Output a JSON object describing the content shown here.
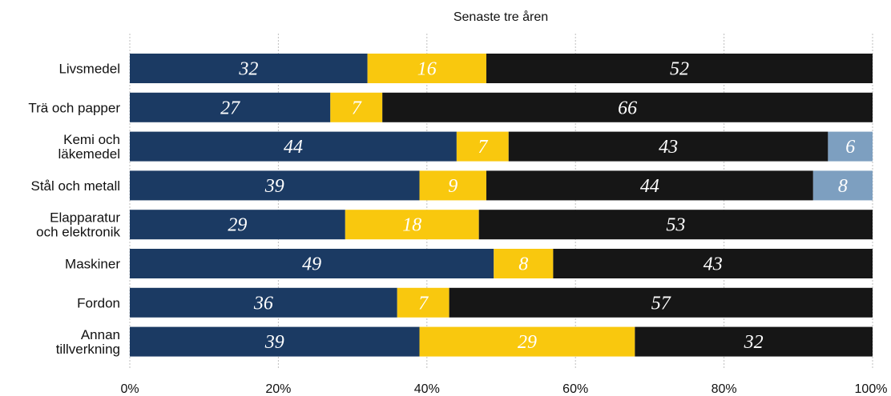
{
  "chart_data": {
    "type": "bar",
    "orientation": "horizontal",
    "stacked": true,
    "title": "Senaste tre åren",
    "categories": [
      "Livsmedel",
      "Trä och papper",
      "Kemi och läkemedel",
      "Stål och metall",
      "Elapparatur och elektronik",
      "Maskiner",
      "Fordon",
      "Annan tillverkning"
    ],
    "category_lines": [
      [
        "Livsmedel"
      ],
      [
        "Trä och papper"
      ],
      [
        "Kemi och",
        "läkemedel"
      ],
      [
        "Stål och metall"
      ],
      [
        "Elapparatur",
        "och elektronik"
      ],
      [
        "Maskiner"
      ],
      [
        "Fordon"
      ],
      [
        "Annan",
        "tillverkning"
      ]
    ],
    "series": [
      {
        "color": "#1b3a63",
        "label_color": "#ffffff",
        "values": [
          32,
          27,
          44,
          39,
          29,
          49,
          36,
          39
        ]
      },
      {
        "color": "#f9c80e",
        "label_color": "#ffffff",
        "values": [
          16,
          7,
          7,
          9,
          18,
          8,
          7,
          29
        ]
      },
      {
        "color": "#161616",
        "label_color": "#ffffff",
        "values": [
          52,
          66,
          43,
          44,
          53,
          43,
          57,
          32
        ]
      },
      {
        "color": "#7d9fc0",
        "label_color": "#ffffff",
        "values": [
          0,
          0,
          6,
          8,
          0,
          0,
          0,
          0
        ]
      }
    ],
    "xlim": [
      0,
      100
    ],
    "xticks": [
      0,
      20,
      40,
      60,
      80,
      100
    ],
    "xtick_labels": [
      "0%",
      "20%",
      "40%",
      "60%",
      "80%",
      "100%"
    ],
    "grid": "vertical",
    "legend": "none",
    "colors": {
      "grid": "#bfbfbf",
      "text": "#111111"
    }
  }
}
